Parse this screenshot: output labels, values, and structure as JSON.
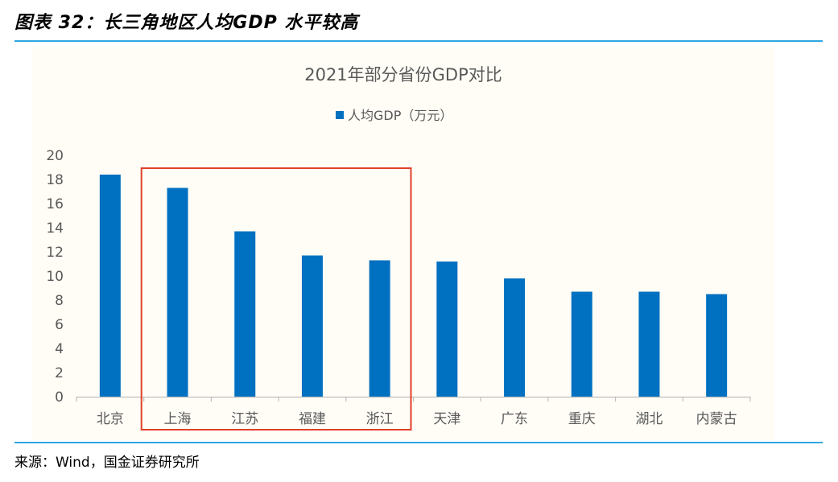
{
  "header": {
    "figure_title": "图表 32：长三角地区人均GDP 水平较高"
  },
  "footer": {
    "source": "来源：Wind，国金证券研究所"
  },
  "colors": {
    "bar": "#0070c0",
    "highlight_box": "#e0402a",
    "rule": "#2ea7e0",
    "axis": "#bfbfbf",
    "text": "#595959"
  },
  "chart_data": {
    "type": "bar",
    "title": "2021年部分省份GDP对比",
    "legend": "人均GDP（万元）",
    "legend_position": "top",
    "categories": [
      "北京",
      "上海",
      "江苏",
      "福建",
      "浙江",
      "天津",
      "广东",
      "重庆",
      "湖北",
      "内蒙古"
    ],
    "series": [
      {
        "name": "人均GDP（万元）",
        "values": [
          18.4,
          17.3,
          13.7,
          11.7,
          11.3,
          11.2,
          9.8,
          8.7,
          8.7,
          8.5
        ]
      }
    ],
    "ylim": [
      0,
      20
    ],
    "yticks": [
      "0",
      "2",
      "4",
      "6",
      "8",
      "10",
      "12",
      "14",
      "16",
      "18",
      "20"
    ],
    "highlighted_categories": [
      "上海",
      "江苏",
      "福建",
      "浙江"
    ],
    "grid": false
  }
}
